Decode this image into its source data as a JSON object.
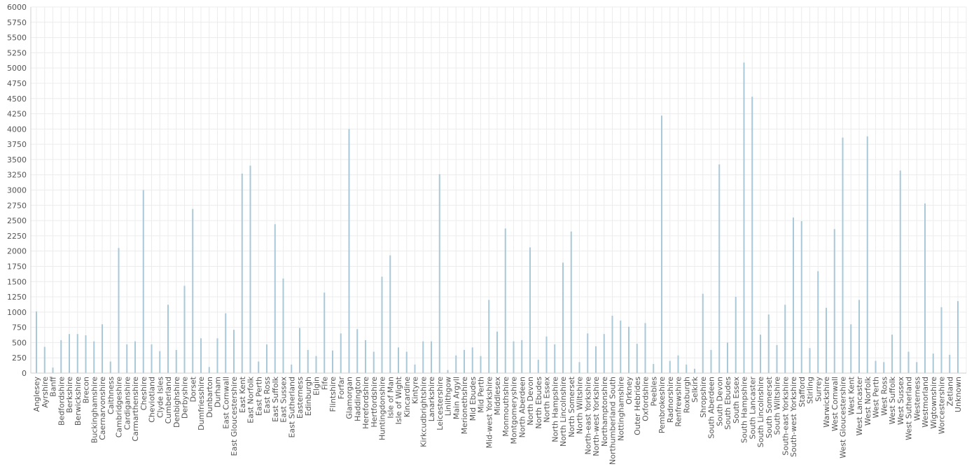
{
  "chart_data": {
    "type": "bar",
    "title": "",
    "xlabel": "",
    "ylabel": "",
    "ylim": [
      0,
      6000
    ],
    "y_ticks": [
      0,
      250,
      500,
      750,
      1000,
      1250,
      1500,
      1750,
      2000,
      2250,
      2500,
      2750,
      3000,
      3250,
      3500,
      3750,
      4000,
      4250,
      4500,
      4750,
      5000,
      5250,
      5500,
      5750,
      6000
    ],
    "grid": true,
    "legend": "none",
    "colors": {
      "bar": "#a9c8d8",
      "grid": "#ececec",
      "axis": "#cfcfcf",
      "text": "#555555"
    },
    "categories": [
      "Anglesey",
      "Ayrshire",
      "Banff",
      "Bedfordshire",
      "Berkshire",
      "Berwickshire",
      "Brecon",
      "Buckinghamshire",
      "Caernarvonshire",
      "Caithness",
      "Cambridgeshire",
      "Cardiganshire",
      "Carmarthenshire",
      "Cheshire",
      "Cheviotland",
      "Clyde Isles",
      "Cumberland",
      "Denbighshire",
      "Derbyshire",
      "Dorset",
      "Dumfriesshire",
      "Dunbarton",
      "Durham",
      "East Cornwall",
      "East Gloucestershire",
      "East Kent",
      "East Norfolk",
      "East Perth",
      "East Ross",
      "East Suffolk",
      "East Sussex",
      "East Sutherland",
      "Easterness",
      "Edinburgh",
      "Elgin",
      "Fife",
      "Flintshire",
      "Forfar",
      "Glamorgan",
      "Haddington",
      "Herefordshire",
      "Hertfordshire",
      "Huntingdonshire",
      "Isle of Man",
      "Isle of Wight",
      "Kincardine",
      "Kintyre",
      "Kirkcudbrightshire",
      "Lanarkshire",
      "Leicestershire",
      "Linlithgow",
      "Main Argyll",
      "Merionethshire",
      "Mid Ebudes",
      "Mid Perth",
      "Mid-west Yorkshire",
      "Middlesex",
      "Monmouthshire",
      "Montgomeryshire",
      "North Aberdeen",
      "North Devon",
      "North Ebudes",
      "North Essex",
      "North Hampshire",
      "North Lincolnshire",
      "North Somerset",
      "North Wiltshire",
      "North-east Yorkshire",
      "North-west Yorkshire",
      "Northamptonshire",
      "Northumberland South",
      "Nottinghamshire",
      "Orkney",
      "Outer Hebrides",
      "Oxfordshire",
      "Peebles",
      "Pembrokeshire",
      "Radnorshire",
      "Renfrewshire",
      "Roxburgh",
      "Selkirk",
      "Shropshire",
      "South Aberdeen",
      "South Devon",
      "South Ebudes",
      "South Essex",
      "South Hampshire",
      "South Lancaster",
      "South Lincolnshire",
      "South Somerset",
      "South Wiltshire",
      "South-east Yorkshire",
      "South-west Yorkshire",
      "Stafford",
      "Stirling",
      "Surrey",
      "Warwickshire",
      "West Cornwall",
      "West Gloucestershire",
      "West Kent",
      "West Lancaster",
      "West Norfolk",
      "West Perth",
      "West Ross",
      "West Suffolk",
      "West Sussex",
      "West Sutherland",
      "Westerness",
      "Westmorland",
      "Wigtownshire",
      "Worcestershire",
      "Zetland",
      "Unknown"
    ],
    "values": [
      1010,
      430,
      90,
      540,
      640,
      640,
      620,
      520,
      800,
      190,
      2050,
      470,
      520,
      3000,
      470,
      360,
      1120,
      380,
      1430,
      2690,
      570,
      100,
      570,
      980,
      710,
      3270,
      3400,
      190,
      470,
      2440,
      1550,
      140,
      740,
      380,
      280,
      1320,
      370,
      650,
      4000,
      720,
      540,
      350,
      1580,
      1930,
      420,
      350,
      140,
      520,
      520,
      3260,
      50,
      290,
      380,
      420,
      280,
      1200,
      680,
      2370,
      520,
      540,
      2060,
      220,
      600,
      470,
      1810,
      2320,
      180,
      650,
      440,
      640,
      940,
      860,
      760,
      480,
      820,
      150,
      4220,
      200,
      290,
      140,
      70,
      1300,
      380,
      3420,
      500,
      1250,
      5090,
      4530,
      630,
      960,
      460,
      1120,
      2550,
      2490,
      410,
      1670,
      1070,
      2360,
      3860,
      800,
      1200,
      3880,
      200,
      180,
      630,
      3320,
      350,
      180,
      2780,
      320,
      1080,
      300,
      1180
    ]
  }
}
